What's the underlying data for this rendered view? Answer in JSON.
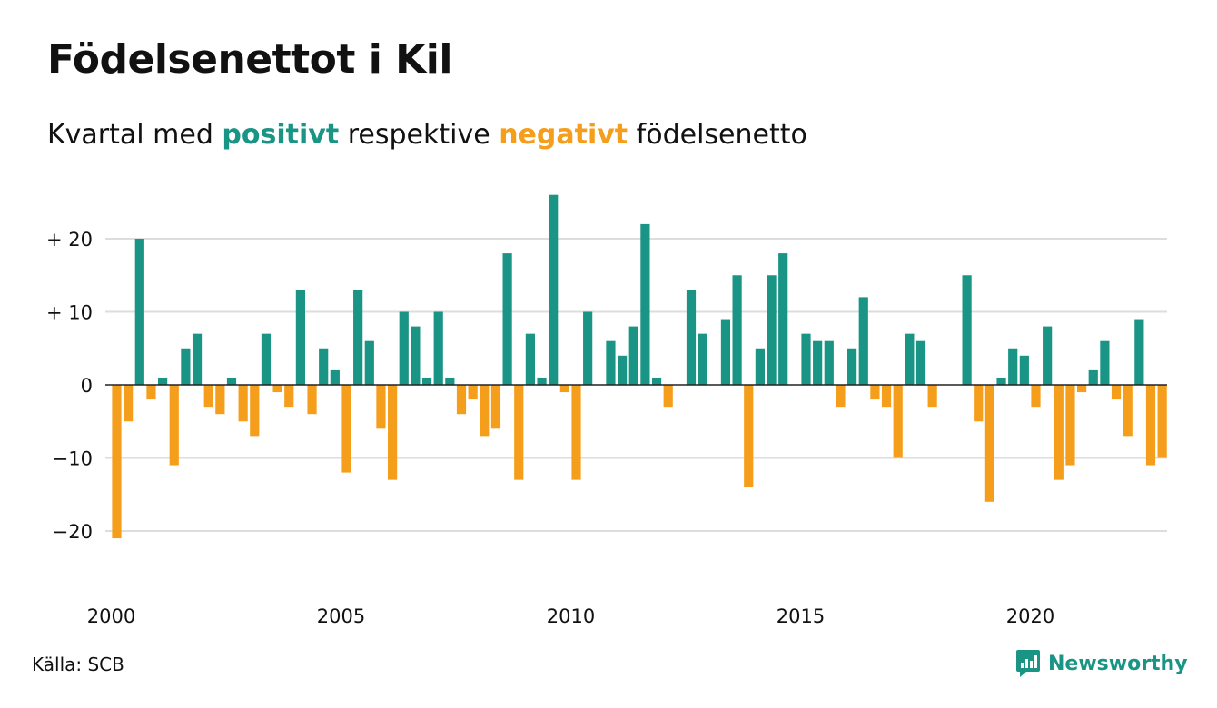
{
  "header": {
    "title": "Födelsenettot i Kil",
    "subtitle_parts": [
      "Kvartal med ",
      "positivt",
      " respektive ",
      "negativt",
      " födelsenetto"
    ]
  },
  "footer": {
    "source": "Källa: SCB",
    "brand": "Newsworthy"
  },
  "colors": {
    "positive": "#1a9485",
    "negative": "#f59e1c",
    "grid": "#dddddd",
    "axis": "#222222"
  },
  "chart_data": {
    "type": "bar",
    "x_start": "2000 Q1",
    "xticks": [
      {
        "label": "2000",
        "index": 0
      },
      {
        "label": "2005",
        "index": 20
      },
      {
        "label": "2010",
        "index": 40
      },
      {
        "label": "2015",
        "index": 60
      },
      {
        "label": "2020",
        "index": 80
      }
    ],
    "yticks": [
      {
        "label": "+ 20",
        "value": 20
      },
      {
        "label": "+ 10",
        "value": 10
      },
      {
        "label": "0",
        "value": 0
      },
      {
        "label": "−10",
        "value": -10
      },
      {
        "label": "−20",
        "value": -20
      }
    ],
    "ylim": [
      -24,
      27
    ],
    "grid": true,
    "values": [
      -21,
      -5,
      20,
      -2,
      1,
      -11,
      5,
      7,
      -3,
      -4,
      1,
      -5,
      -7,
      7,
      -1,
      -3,
      13,
      -4,
      5,
      2,
      -12,
      13,
      6,
      -6,
      -13,
      10,
      8,
      1,
      10,
      1,
      -4,
      -2,
      -7,
      -6,
      18,
      -13,
      7,
      1,
      26,
      -1,
      -13,
      10,
      0,
      6,
      4,
      8,
      22,
      1,
      -3,
      0,
      13,
      7,
      0,
      9,
      15,
      -14,
      5,
      15,
      18,
      0,
      7,
      6,
      6,
      -3,
      5,
      12,
      -2,
      -3,
      -10,
      7,
      6,
      -3,
      0,
      0,
      15,
      -5,
      -16,
      1,
      5,
      4,
      -3,
      8,
      -13,
      -11,
      -1,
      2,
      6,
      -2,
      -7,
      9,
      -11,
      -10
    ]
  }
}
